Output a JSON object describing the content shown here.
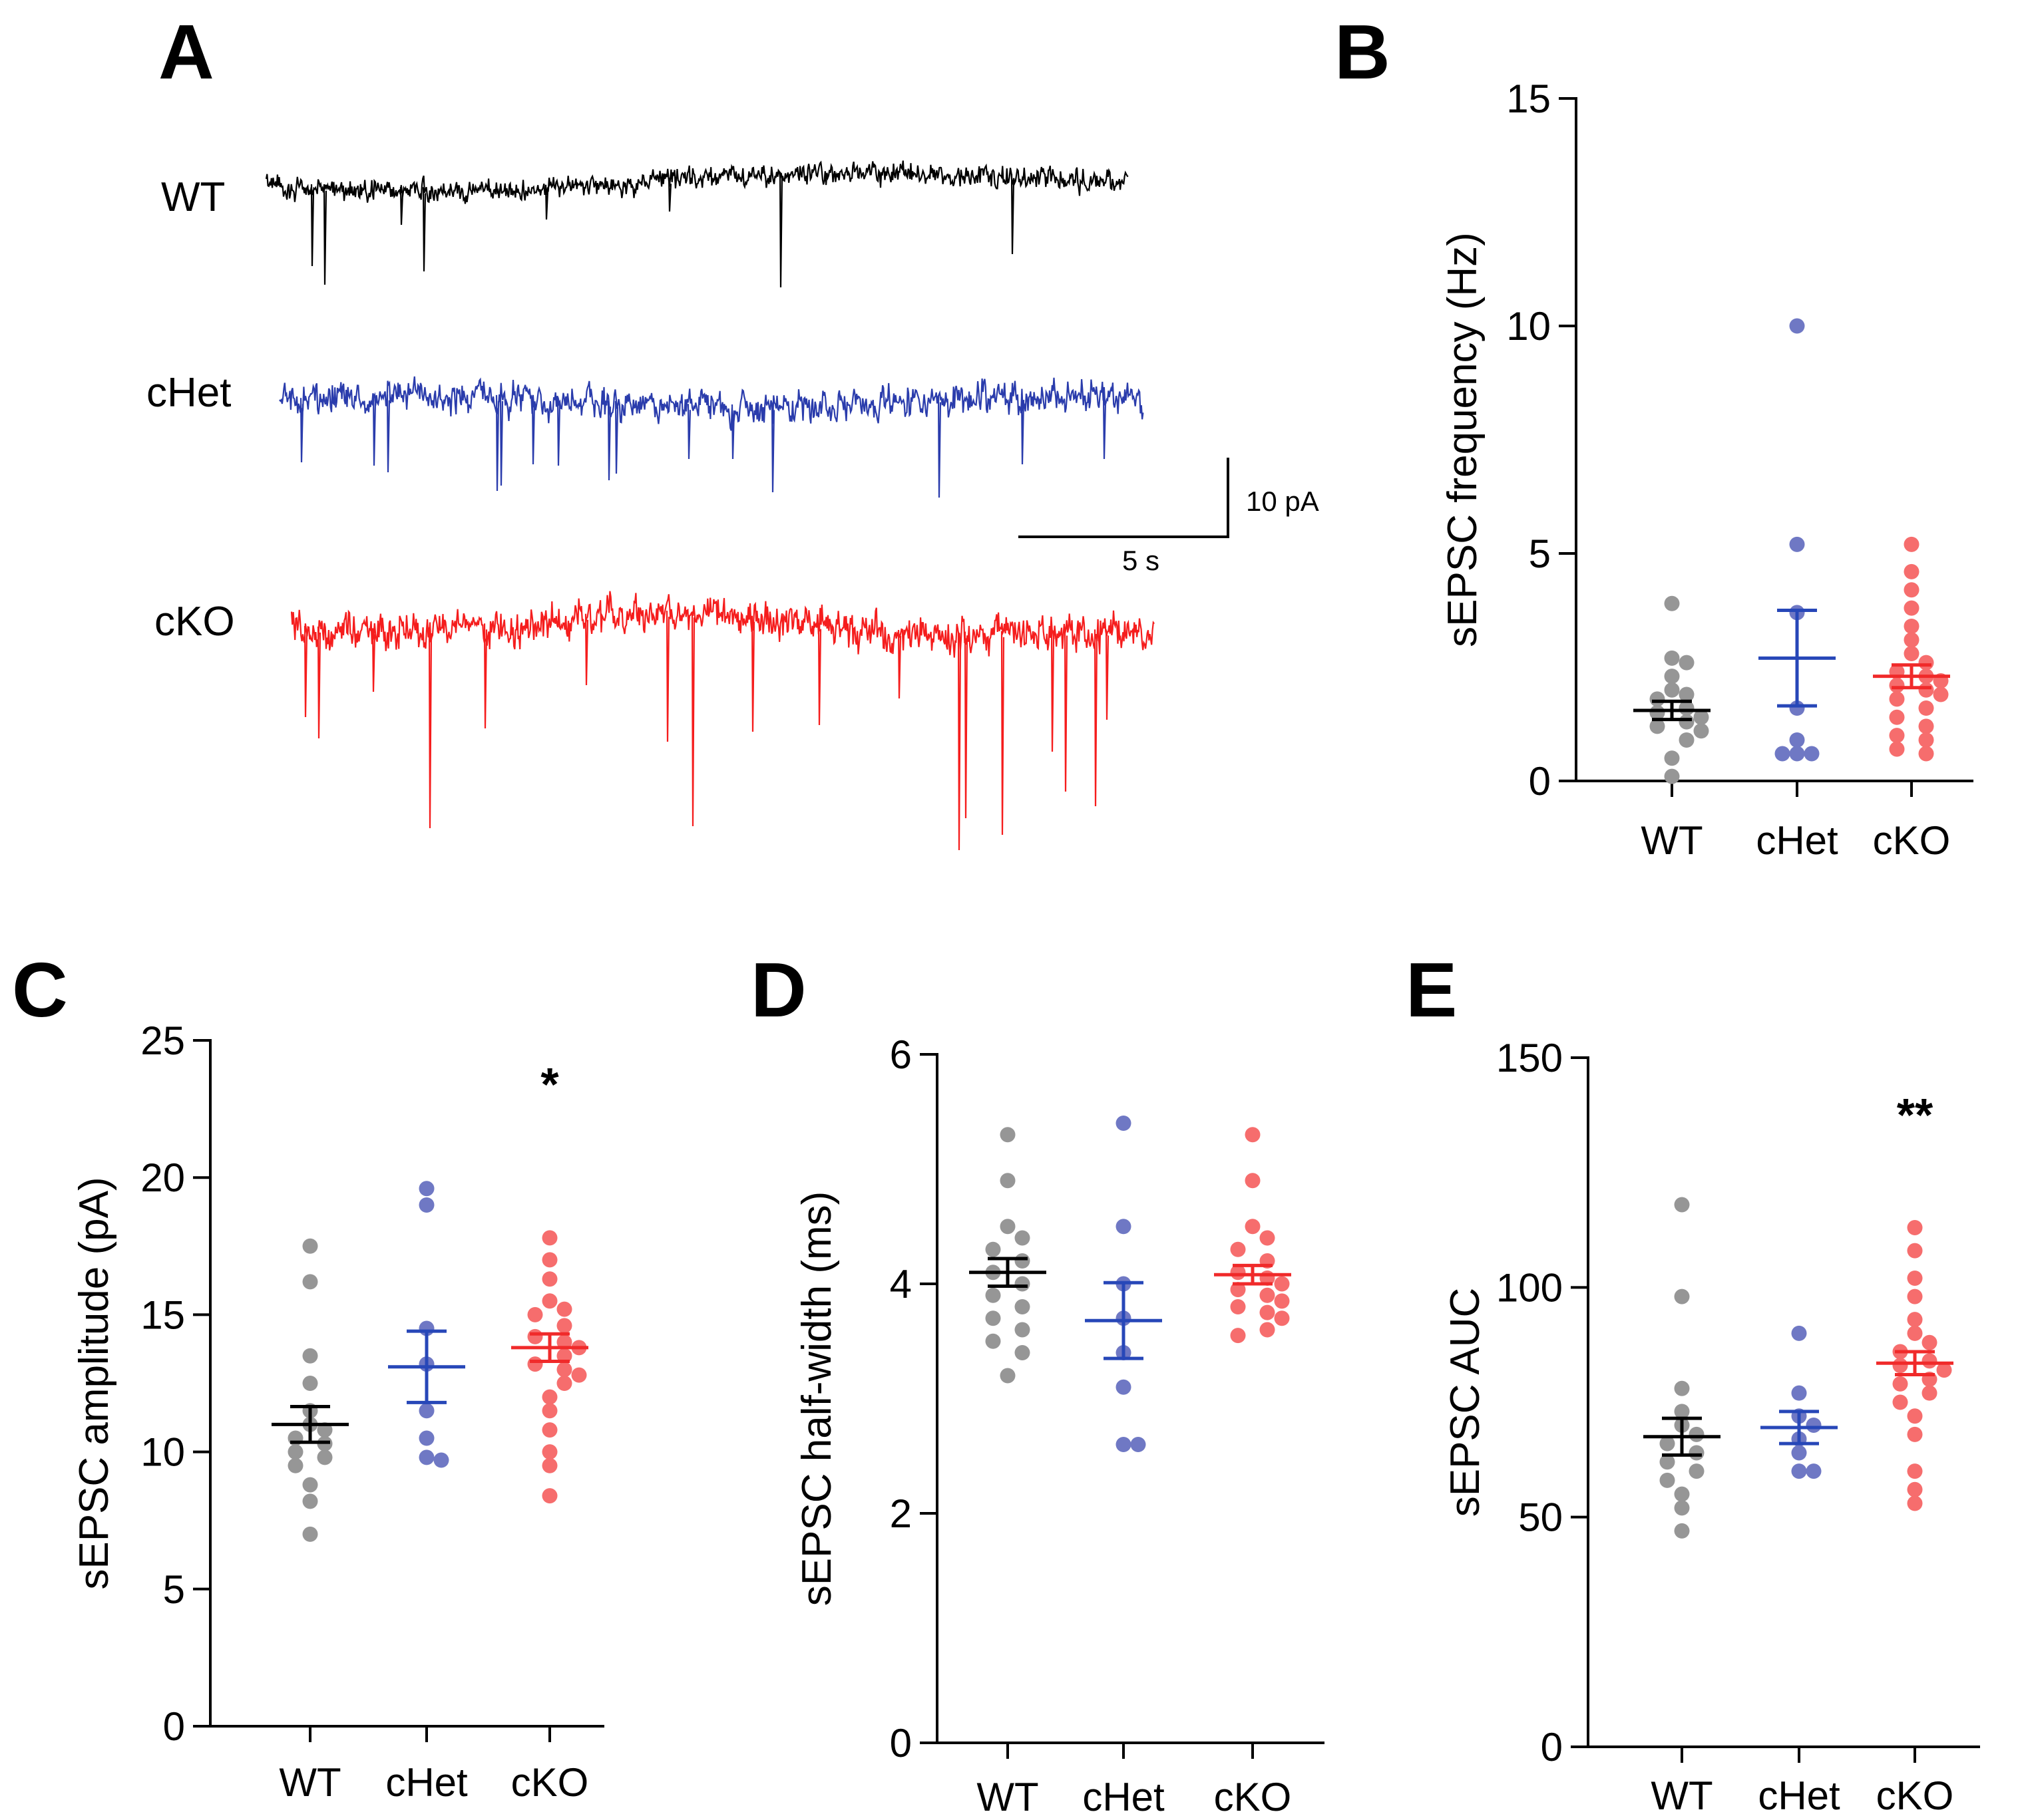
{
  "figure": {
    "panel_labels": [
      "A",
      "B",
      "C",
      "D",
      "E"
    ],
    "group_colors": {
      "WT": {
        "point": "#969696",
        "line": "#000000",
        "trace": "#000000"
      },
      "cHet": {
        "point": "#6f78c4",
        "line": "#2747b8",
        "trace": "#2a3cac"
      },
      "cKO": {
        "point": "#f66d6d",
        "line": "#f02a2a",
        "trace": "#f51d1d"
      }
    }
  },
  "traces": {
    "labels": [
      "WT",
      "cHet",
      "cKO"
    ],
    "scale_bar": {
      "current_label": "10 pA",
      "time_label": "5 s"
    }
  },
  "chart_data": [
    {
      "panel": "B",
      "type": "scatter",
      "ylabel": "sEPSC frequency (Hz)",
      "categories": [
        "WT",
        "cHet",
        "cKO"
      ],
      "ylim": [
        0,
        15
      ],
      "yticks": [
        0,
        5,
        10,
        15
      ],
      "significance": [
        "",
        "",
        ""
      ],
      "series": [
        {
          "name": "WT",
          "values": [
            3.9,
            2.7,
            2.6,
            2.3,
            2.0,
            1.9,
            1.8,
            1.6,
            1.5,
            1.4,
            1.3,
            1.2,
            1.1,
            0.9,
            0.5,
            0.1
          ],
          "mean": 1.55,
          "sem": 0.2
        },
        {
          "name": "cHet",
          "values": [
            10.0,
            5.2,
            3.7,
            1.6,
            0.9,
            0.6,
            0.6,
            0.6
          ],
          "mean": 2.7,
          "sem": 1.05
        },
        {
          "name": "cKO",
          "values": [
            5.2,
            4.6,
            4.2,
            3.8,
            3.4,
            3.1,
            2.8,
            2.6,
            2.4,
            2.3,
            2.2,
            2.1,
            2.0,
            1.9,
            1.8,
            1.6,
            1.4,
            1.2,
            1.0,
            0.9,
            0.7,
            0.6
          ],
          "mean": 2.3,
          "sem": 0.25
        }
      ]
    },
    {
      "panel": "C",
      "type": "scatter",
      "ylabel": "sEPSC amplitude (pA)",
      "categories": [
        "WT",
        "cHet",
        "cKO"
      ],
      "ylim": [
        0,
        25
      ],
      "yticks": [
        0,
        5,
        10,
        15,
        20,
        25
      ],
      "significance": [
        "",
        "",
        "*"
      ],
      "series": [
        {
          "name": "WT",
          "values": [
            17.5,
            16.2,
            13.5,
            12.5,
            11.5,
            11.0,
            10.8,
            10.5,
            10.3,
            10.0,
            9.8,
            9.5,
            8.8,
            8.2,
            7.0
          ],
          "mean": 11.0,
          "sem": 0.65
        },
        {
          "name": "cHet",
          "values": [
            19.6,
            19.0,
            14.5,
            13.2,
            11.5,
            10.5,
            9.8,
            9.7
          ],
          "mean": 13.1,
          "sem": 1.3
        },
        {
          "name": "cKO",
          "values": [
            17.8,
            17.0,
            16.3,
            15.5,
            15.2,
            15.0,
            14.6,
            14.2,
            14.0,
            13.8,
            13.5,
            13.2,
            13.0,
            12.8,
            12.5,
            12.0,
            11.5,
            10.8,
            10.0,
            9.5,
            8.4
          ],
          "mean": 13.8,
          "sem": 0.5
        }
      ]
    },
    {
      "panel": "D",
      "type": "scatter",
      "ylabel": "sEPSC half-width (ms)",
      "categories": [
        "WT",
        "cHet",
        "cKO"
      ],
      "ylim": [
        0,
        6
      ],
      "yticks": [
        0,
        2,
        4,
        6
      ],
      "significance": [
        "",
        "",
        ""
      ],
      "series": [
        {
          "name": "WT",
          "values": [
            5.3,
            4.9,
            4.5,
            4.4,
            4.3,
            4.2,
            4.1,
            4.0,
            3.9,
            3.8,
            3.7,
            3.6,
            3.5,
            3.4,
            3.2
          ],
          "mean": 4.1,
          "sem": 0.12
        },
        {
          "name": "cHet",
          "values": [
            5.4,
            4.5,
            4.0,
            3.7,
            3.4,
            3.1,
            2.6,
            2.6
          ],
          "mean": 3.68,
          "sem": 0.33
        },
        {
          "name": "cKO",
          "values": [
            5.3,
            4.9,
            4.5,
            4.4,
            4.3,
            4.2,
            4.1,
            4.05,
            4.0,
            3.95,
            3.9,
            3.85,
            3.8,
            3.75,
            3.7,
            3.6,
            3.55
          ],
          "mean": 4.08,
          "sem": 0.08
        }
      ]
    },
    {
      "panel": "E",
      "type": "scatter",
      "ylabel": "sEPSC AUC",
      "categories": [
        "WT",
        "cHet",
        "cKO"
      ],
      "ylim": [
        0,
        150
      ],
      "yticks": [
        0,
        50,
        100,
        150
      ],
      "significance": [
        "",
        "",
        "**"
      ],
      "series": [
        {
          "name": "WT",
          "values": [
            118,
            98,
            78,
            73,
            70,
            68,
            66,
            64,
            62,
            60,
            58,
            55,
            52,
            47
          ],
          "mean": 67.5,
          "sem": 4.0
        },
        {
          "name": "cHet",
          "values": [
            90,
            77,
            72,
            70,
            67,
            64,
            60,
            60
          ],
          "mean": 69.5,
          "sem": 3.5
        },
        {
          "name": "cKO",
          "values": [
            113,
            108,
            102,
            98,
            93,
            90,
            88,
            86,
            84,
            83,
            82,
            80,
            79,
            77,
            75,
            72,
            68,
            60,
            56,
            53
          ],
          "mean": 83.5,
          "sem": 2.5
        }
      ]
    }
  ]
}
